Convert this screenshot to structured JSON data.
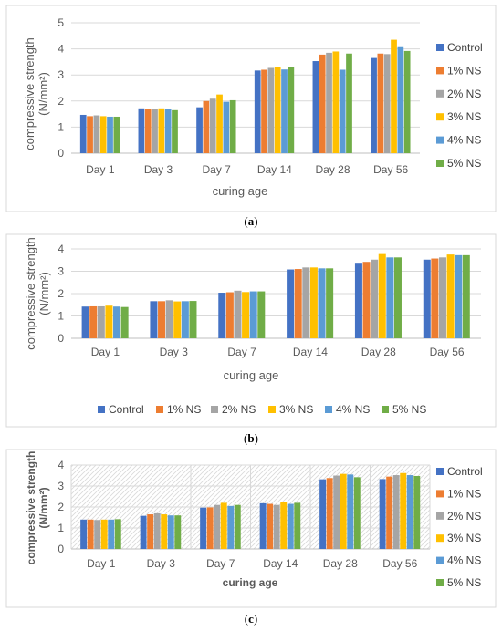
{
  "colors": [
    "#4472C4",
    "#ED7D31",
    "#A5A5A5",
    "#FFC000",
    "#5B9BD5",
    "#70AD47"
  ],
  "chart_data": [
    {
      "id": "a",
      "caption": "a",
      "type": "bar",
      "categories": [
        "Day 1",
        "Day 3",
        "Day 7",
        "Day 14",
        "Day 28",
        "Day 56"
      ],
      "series": [
        {
          "name": "Control",
          "values": [
            1.47,
            1.72,
            1.76,
            3.17,
            3.53,
            3.65
          ]
        },
        {
          "name": "1% NS",
          "values": [
            1.42,
            1.68,
            2.0,
            3.2,
            3.78,
            3.82
          ]
        },
        {
          "name": "2% NS",
          "values": [
            1.45,
            1.68,
            2.09,
            3.27,
            3.85,
            3.8
          ]
        },
        {
          "name": "3% NS",
          "values": [
            1.42,
            1.72,
            2.25,
            3.29,
            3.9,
            4.35
          ]
        },
        {
          "name": "4% NS",
          "values": [
            1.4,
            1.68,
            1.97,
            3.21,
            3.2,
            4.1
          ]
        },
        {
          "name": "5% NS",
          "values": [
            1.4,
            1.65,
            2.03,
            3.3,
            3.82,
            3.92
          ]
        }
      ],
      "xlabel": "curing age",
      "ylabel": "compressive strength",
      "yunit": "(N/mm²)",
      "ylim": [
        0,
        5
      ],
      "yticks": [
        "0",
        "1",
        "2",
        "3",
        "4",
        "5"
      ],
      "legend_position": "right",
      "grid": true
    },
    {
      "id": "b",
      "caption": "b",
      "type": "bar",
      "categories": [
        "Day 1",
        "Day 3",
        "Day 7",
        "Day 14",
        "Day 28",
        "Day 56"
      ],
      "series": [
        {
          "name": "Control",
          "values": [
            1.42,
            1.66,
            2.04,
            3.08,
            3.38,
            3.52
          ]
        },
        {
          "name": "1% NS",
          "values": [
            1.43,
            1.66,
            2.06,
            3.1,
            3.42,
            3.57
          ]
        },
        {
          "name": "2% NS",
          "values": [
            1.43,
            1.7,
            2.13,
            3.17,
            3.52,
            3.62
          ]
        },
        {
          "name": "3% NS",
          "values": [
            1.46,
            1.65,
            2.07,
            3.17,
            3.77,
            3.75
          ]
        },
        {
          "name": "4% NS",
          "values": [
            1.42,
            1.66,
            2.1,
            3.13,
            3.62,
            3.72
          ]
        },
        {
          "name": "5% NS",
          "values": [
            1.4,
            1.67,
            2.1,
            3.13,
            3.62,
            3.72
          ]
        }
      ],
      "xlabel": "curing age",
      "ylabel": "compressive strength",
      "yunit": "(N/mm²)",
      "ylim": [
        0,
        4
      ],
      "yticks": [
        "0",
        "1",
        "2",
        "3",
        "4"
      ],
      "legend_position": "bottom",
      "grid": true
    },
    {
      "id": "c",
      "caption": "c",
      "type": "bar",
      "categories": [
        "Day 1",
        "Day 3",
        "Day 7",
        "Day 14",
        "Day 28",
        "Day 56"
      ],
      "series": [
        {
          "name": "Control",
          "values": [
            1.4,
            1.58,
            1.97,
            2.18,
            3.32,
            3.33
          ]
        },
        {
          "name": "1% NS",
          "values": [
            1.4,
            1.65,
            1.98,
            2.15,
            3.38,
            3.45
          ]
        },
        {
          "name": "2% NS",
          "values": [
            1.38,
            1.7,
            2.1,
            2.1,
            3.5,
            3.52
          ]
        },
        {
          "name": "3% NS",
          "values": [
            1.4,
            1.65,
            2.2,
            2.22,
            3.58,
            3.62
          ]
        },
        {
          "name": "4% NS",
          "values": [
            1.4,
            1.6,
            2.05,
            2.15,
            3.55,
            3.52
          ]
        },
        {
          "name": "5% NS",
          "values": [
            1.42,
            1.6,
            2.1,
            2.2,
            3.42,
            3.48
          ]
        }
      ],
      "xlabel": "curing age",
      "ylabel": "compressive strength",
      "yunit": "(N/mm²)",
      "ylim": [
        0,
        4
      ],
      "yticks": [
        "0",
        "1",
        "2",
        "3",
        "4"
      ],
      "legend_position": "right",
      "grid": true,
      "hatched_background": true
    }
  ]
}
